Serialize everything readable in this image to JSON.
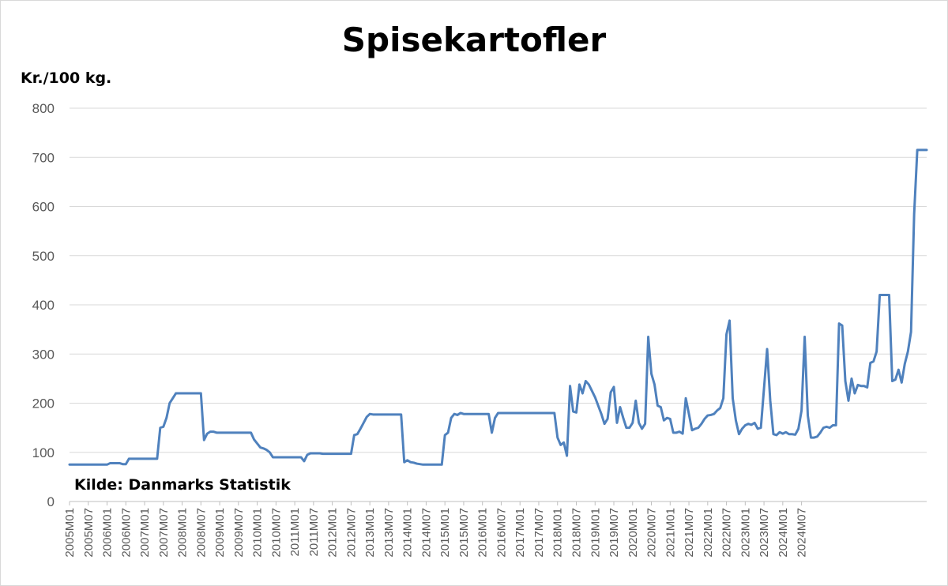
{
  "chart_data": {
    "type": "line",
    "title": "Spisekartofler",
    "ylabel": "Kr./100 kg.",
    "xlabel": "",
    "annotation": "Kilde: Danmarks Statistik",
    "ylim": [
      0,
      800
    ],
    "yticks": [
      0,
      100,
      200,
      300,
      400,
      500,
      600,
      700,
      800
    ],
    "grid": true,
    "line_color": "#4f81bd",
    "x_tick_labels": [
      "2005M01",
      "2005M07",
      "2006M01",
      "2006M07",
      "2007M01",
      "2007M07",
      "2008M01",
      "2008M07",
      "2009M01",
      "2009M07",
      "2010M01",
      "2010M07",
      "2011M01",
      "2011M07",
      "2012M01",
      "2012M07",
      "2013M01",
      "2013M07",
      "2014M01",
      "2014M07",
      "2015M01",
      "2015M07",
      "2016M01",
      "2016M07",
      "2017M01",
      "2017M07",
      "2018M01",
      "2018M07",
      "2019M01",
      "2019M07",
      "2020M01",
      "2020M07",
      "2021M01",
      "2021M07",
      "2022M01",
      "2022M07",
      "2023M01",
      "2023M07",
      "2024M01",
      "2024M07"
    ],
    "x_start": "2005M01",
    "x_step": "1 month",
    "series": [
      {
        "values": [
          75,
          75,
          75,
          75,
          75,
          75,
          75,
          75,
          75,
          75,
          75,
          75,
          75,
          78,
          78,
          78,
          78,
          76,
          76,
          87,
          87,
          87,
          87,
          87,
          87,
          87,
          87,
          87,
          87,
          150,
          152,
          170,
          200,
          210,
          220,
          220,
          220,
          220,
          220,
          220,
          220,
          220,
          220,
          125,
          138,
          142,
          142,
          140,
          140,
          140,
          140,
          140,
          140,
          140,
          140,
          140,
          140,
          140,
          140,
          126,
          118,
          110,
          108,
          105,
          100,
          90,
          90,
          90,
          90,
          90,
          90,
          90,
          90,
          90,
          90,
          82,
          95,
          98,
          98,
          98,
          98,
          97,
          97,
          97,
          97,
          97,
          97,
          97,
          97,
          97,
          97,
          135,
          137,
          148,
          160,
          172,
          178,
          177,
          177,
          177,
          177,
          177,
          177,
          177,
          177,
          177,
          177,
          80,
          84,
          80,
          79,
          77,
          76,
          75,
          75,
          75,
          75,
          75,
          75,
          75,
          135,
          140,
          170,
          178,
          176,
          180,
          178,
          178,
          178,
          178,
          178,
          178,
          178,
          178,
          178,
          140,
          170,
          180,
          180,
          180,
          180,
          180,
          180,
          180,
          180,
          180,
          180,
          180,
          180,
          180,
          180,
          180,
          180,
          180,
          180,
          180,
          130,
          115,
          120,
          93,
          235,
          183,
          181,
          238,
          220,
          245,
          238,
          225,
          212,
          195,
          178,
          158,
          168,
          222,
          233,
          160,
          192,
          170,
          150,
          150,
          160,
          205,
          160,
          148,
          158,
          335,
          260,
          238,
          195,
          192,
          165,
          170,
          168,
          140,
          140,
          142,
          138,
          210,
          178,
          145,
          148,
          150,
          158,
          168,
          175,
          176,
          178,
          185,
          190,
          210,
          340,
          368,
          210,
          165,
          137,
          148,
          155,
          158,
          156,
          160,
          148,
          150,
          230,
          310,
          205,
          137,
          135,
          141,
          138,
          141,
          137,
          137,
          136,
          148,
          185,
          335,
          175,
          130,
          130,
          132,
          140,
          150,
          152,
          150,
          155,
          155,
          362,
          358,
          245,
          205,
          250,
          220,
          237,
          235,
          235,
          232,
          282,
          285,
          305,
          420,
          420,
          420,
          420,
          245,
          248,
          268,
          242,
          280,
          305,
          345,
          585,
          715,
          715,
          715,
          715
        ]
      }
    ]
  }
}
